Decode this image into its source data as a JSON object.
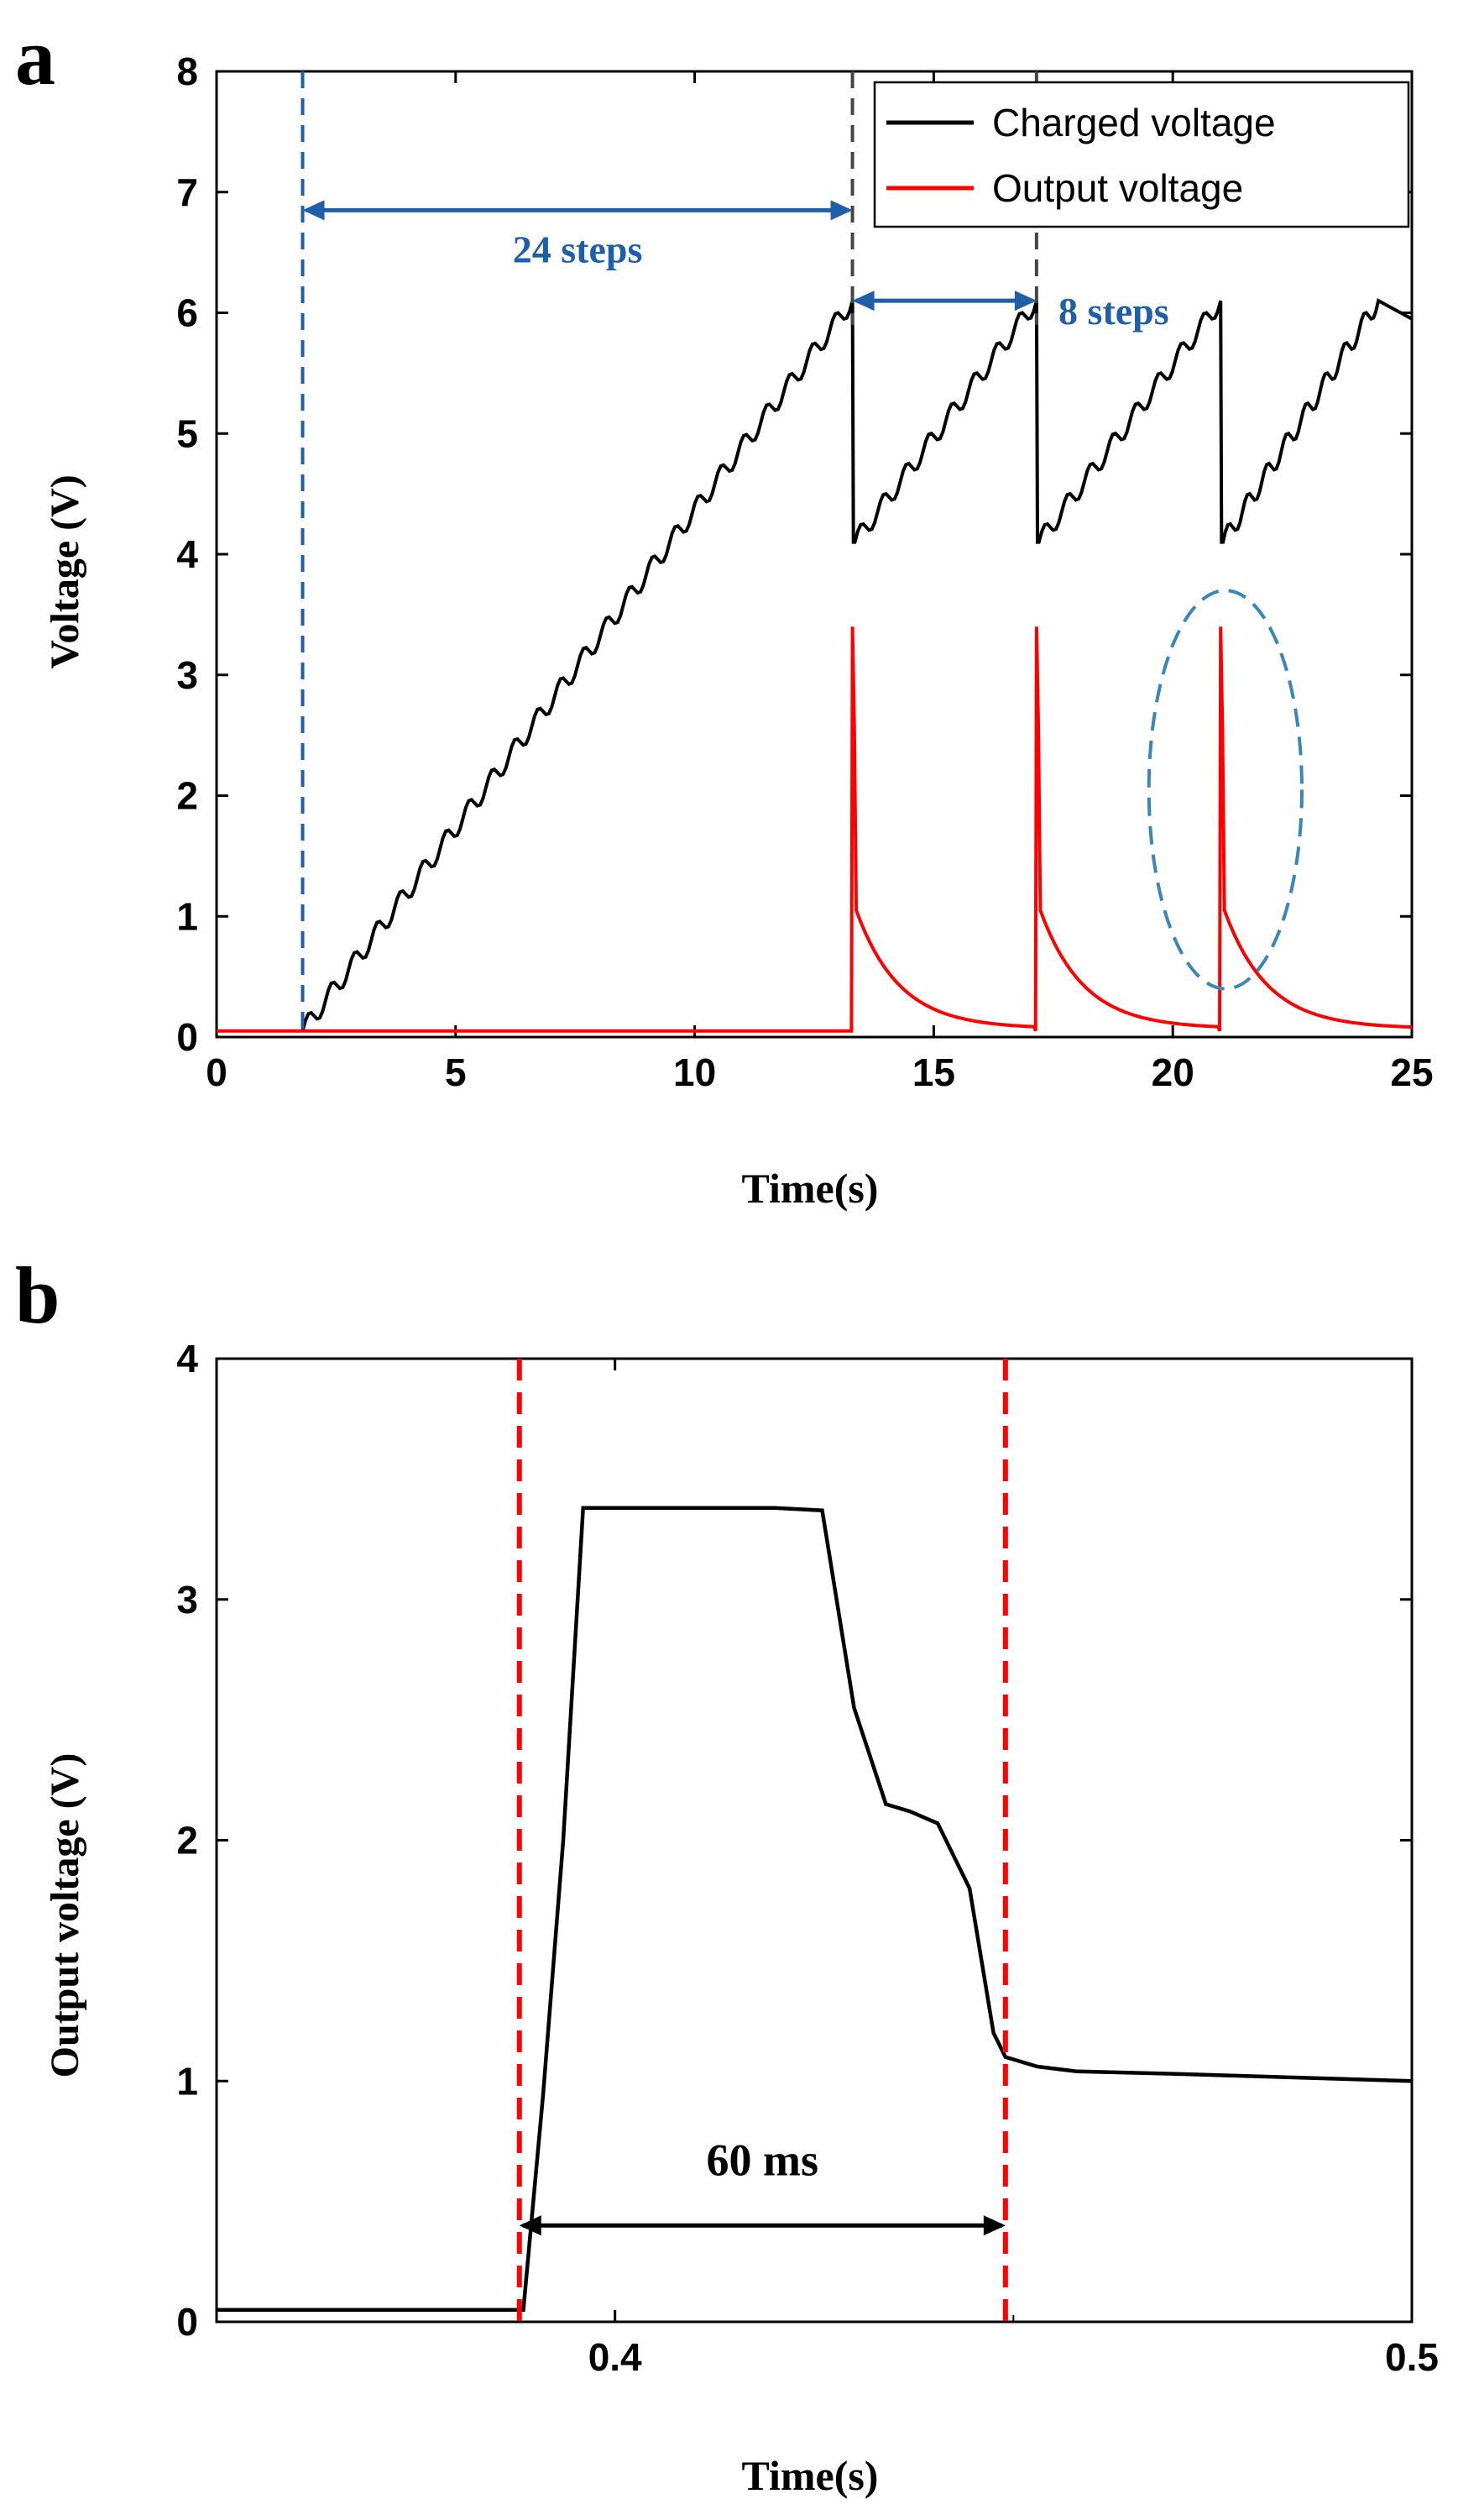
{
  "colors": {
    "black": "#000000",
    "red": "#ff0000",
    "blue_annotation": "#1f5fa8",
    "blue_ellipse": "#3a86b8",
    "gray_dash": "#444444"
  },
  "chart_data": [
    {
      "type": "line",
      "panel_label": "a",
      "title": "",
      "xlabel": "Time(s)",
      "ylabel": "Voltage (V)",
      "xlim": [
        0,
        25
      ],
      "ylim": [
        0,
        8
      ],
      "xticks": [
        0,
        5,
        10,
        15,
        20,
        25
      ],
      "yticks": [
        0,
        1,
        2,
        3,
        4,
        5,
        6,
        7,
        8
      ],
      "grid": false,
      "legend_position": "top-right",
      "series": [
        {
          "name": "Charged voltage",
          "color": "#000000",
          "shape": "sawtooth charging",
          "start_time": 1.8,
          "baseline_before": 0.05,
          "peak_value": 6.1,
          "dip_value": 4.1,
          "discharge_times": [
            13.3,
            17.15,
            21.0
          ],
          "steps_per_volt_initial": 4,
          "end_value": 5.95
        },
        {
          "name": "Output voltage",
          "color": "#ff0000",
          "shape": "pulses",
          "baseline": 0.05,
          "pulse_times": [
            13.3,
            17.15,
            21.0
          ],
          "pulse_peak": 3.4,
          "after_pulse": 1.05,
          "decay_floor": 0.07
        }
      ],
      "annotations": [
        {
          "text": "24 steps",
          "from_x": 1.8,
          "to_x": 13.3,
          "y": 6.85,
          "color": "#1f5fa8"
        },
        {
          "text": "8 steps",
          "from_x": 13.3,
          "to_x": 17.15,
          "y": 6.1,
          "color": "#1f5fa8"
        }
      ],
      "vlines": [
        {
          "x": 1.8,
          "color": "#1f5fa8",
          "style": "dashed"
        },
        {
          "x": 13.3,
          "color": "#444444",
          "style": "dashed"
        },
        {
          "x": 17.15,
          "color": "#444444",
          "style": "dashed"
        }
      ],
      "highlight_ellipse": {
        "cx": 21.1,
        "cy": 2.05,
        "rx": 1.6,
        "ry": 1.65
      }
    },
    {
      "type": "line",
      "panel_label": "b",
      "title": "",
      "xlabel": "Time(s)",
      "ylabel": "Output voltage (V)",
      "xlim": [
        0.35,
        0.5
      ],
      "ylim": [
        0,
        4
      ],
      "xticks": [
        0.4,
        0.5
      ],
      "xtick_labels": [
        "0.4",
        "0.5"
      ],
      "yticks": [
        0,
        1,
        2,
        3,
        4
      ],
      "grid": false,
      "series": [
        {
          "name": "Output voltage",
          "color": "#000000",
          "x": [
            0.35,
            0.388,
            0.3885,
            0.391,
            0.3935,
            0.396,
            0.41,
            0.42,
            0.426,
            0.43,
            0.434,
            0.437,
            0.4405,
            0.4445,
            0.4475,
            0.449,
            0.453,
            0.458,
            0.47,
            0.49,
            0.5
          ],
          "y": [
            0.05,
            0.05,
            0.05,
            0.95,
            2.0,
            3.38,
            3.38,
            3.38,
            3.37,
            2.55,
            2.15,
            2.12,
            2.07,
            1.8,
            1.2,
            1.1,
            1.06,
            1.04,
            1.03,
            1.01,
            1.0
          ]
        }
      ],
      "vlines": [
        {
          "x": 0.388,
          "color": "#ff0000",
          "style": "dashed"
        },
        {
          "x": 0.449,
          "color": "#ff0000",
          "style": "dashed"
        }
      ],
      "annotations": [
        {
          "text": "60 ms",
          "from_x": 0.388,
          "to_x": 0.449,
          "y": 0.4,
          "color": "#000000"
        }
      ]
    }
  ]
}
